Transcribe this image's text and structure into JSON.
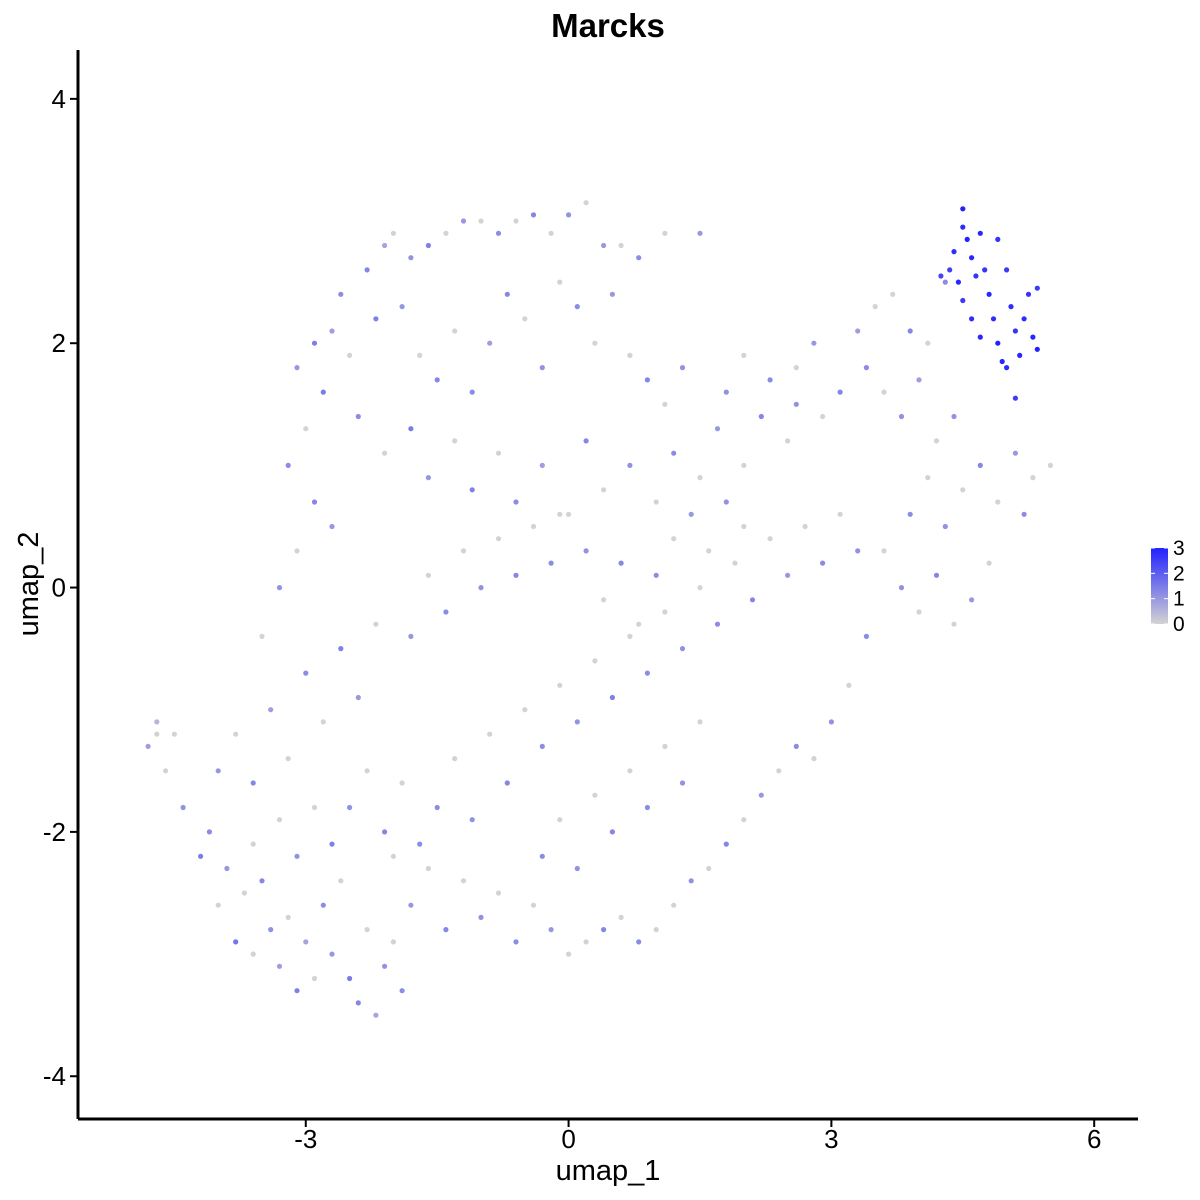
{
  "chart_data": {
    "type": "scatter",
    "title": "Marcks",
    "xlabel": "umap_1",
    "ylabel": "umap_2",
    "xlim": [
      -5.6,
      6.5
    ],
    "ylim": [
      -4.35,
      4.4
    ],
    "x_ticks": [
      -3,
      0,
      3,
      6
    ],
    "x_tick_labels": [
      "-3",
      "0",
      "3",
      "6"
    ],
    "y_ticks": [
      -4,
      -2,
      0,
      2,
      4
    ],
    "y_tick_labels": [
      "-4",
      "-2",
      "0",
      "2",
      "4"
    ],
    "grid": false,
    "legend": {
      "position": "right",
      "type": "continuous colorbar",
      "range": [
        0,
        3
      ],
      "ticks": [
        0,
        1,
        2,
        3
      ],
      "tick_labels": [
        "0",
        "1",
        "2",
        "3"
      ],
      "low_color": "#d3d3d3",
      "high_color": "#2222ff"
    },
    "colors": {
      "low": "#d3d3d3",
      "high": "#2222ff"
    },
    "points": [
      [
        -4.8,
        -1.3,
        0.9
      ],
      [
        -4.7,
        -1.1,
        0.5
      ],
      [
        -4.7,
        -1.2,
        0.0
      ],
      [
        -4.6,
        -1.5,
        0.0
      ],
      [
        -4.5,
        -1.2,
        0.0
      ],
      [
        -4.4,
        -1.8,
        1.1
      ],
      [
        -4.2,
        -2.2,
        1.5
      ],
      [
        -4.1,
        -2.0,
        1.2
      ],
      [
        -4.0,
        -2.6,
        0.0
      ],
      [
        -3.9,
        -2.3,
        1.0
      ],
      [
        -3.8,
        -2.9,
        1.6
      ],
      [
        -3.7,
        -2.5,
        0.0
      ],
      [
        -3.6,
        -3.0,
        0.0
      ],
      [
        -3.5,
        -2.4,
        1.3
      ],
      [
        -3.4,
        -2.8,
        1.1
      ],
      [
        -3.3,
        -3.1,
        0.9
      ],
      [
        -3.2,
        -2.7,
        0.0
      ],
      [
        -3.1,
        -3.3,
        1.4
      ],
      [
        -3.0,
        -2.9,
        0.8
      ],
      [
        -2.9,
        -3.2,
        0.0
      ],
      [
        -2.8,
        -2.6,
        1.2
      ],
      [
        -2.7,
        -3.0,
        1.0
      ],
      [
        -2.6,
        -2.4,
        0.0
      ],
      [
        -2.5,
        -3.2,
        1.5
      ],
      [
        -2.4,
        -3.4,
        1.3
      ],
      [
        -2.3,
        -2.8,
        0.0
      ],
      [
        -2.2,
        -3.5,
        0.8
      ],
      [
        -2.1,
        -3.1,
        1.1
      ],
      [
        -2.0,
        -2.9,
        0.0
      ],
      [
        -1.9,
        -3.3,
        1.2
      ],
      [
        -4.0,
        -1.5,
        1.0
      ],
      [
        -3.8,
        -1.2,
        0.0
      ],
      [
        -3.6,
        -1.6,
        1.3
      ],
      [
        -3.4,
        -1.0,
        0.9
      ],
      [
        -3.2,
        -1.4,
        0.0
      ],
      [
        -3.0,
        -0.7,
        1.2
      ],
      [
        -2.8,
        -1.1,
        0.0
      ],
      [
        -2.6,
        -0.5,
        1.4
      ],
      [
        -2.4,
        -0.9,
        1.0
      ],
      [
        -2.2,
        -0.3,
        0.0
      ],
      [
        -3.5,
        -0.4,
        0.0
      ],
      [
        -3.3,
        0.0,
        1.1
      ],
      [
        -3.1,
        0.3,
        0.0
      ],
      [
        -2.9,
        0.7,
        1.3
      ],
      [
        -2.7,
        0.5,
        1.0
      ],
      [
        -3.2,
        1.0,
        1.2
      ],
      [
        -3.0,
        1.3,
        0.0
      ],
      [
        -2.8,
        1.6,
        1.5
      ],
      [
        -3.1,
        1.8,
        1.0
      ],
      [
        -2.9,
        2.0,
        1.4
      ],
      [
        -2.7,
        2.1,
        0.9
      ],
      [
        -2.5,
        1.9,
        0.0
      ],
      [
        -2.6,
        2.4,
        1.2
      ],
      [
        -2.3,
        2.6,
        1.3
      ],
      [
        -2.1,
        2.8,
        0.8
      ],
      [
        -2.0,
        2.9,
        0.0
      ],
      [
        -1.8,
        2.7,
        1.1
      ],
      [
        -1.6,
        2.8,
        1.4
      ],
      [
        -1.4,
        2.9,
        0.0
      ],
      [
        -1.2,
        3.0,
        1.0
      ],
      [
        -1.0,
        3.0,
        0.0
      ],
      [
        -0.8,
        2.9,
        1.2
      ],
      [
        -0.6,
        3.0,
        0.0
      ],
      [
        -0.4,
        3.05,
        1.3
      ],
      [
        -0.2,
        2.9,
        0.0
      ],
      [
        0.0,
        3.05,
        1.1
      ],
      [
        0.2,
        3.15,
        0.0
      ],
      [
        0.4,
        2.8,
        1.0
      ],
      [
        0.6,
        2.8,
        0.0
      ],
      [
        0.8,
        2.7,
        1.2
      ],
      [
        1.1,
        2.9,
        0.0
      ],
      [
        1.5,
        2.9,
        1.0
      ],
      [
        -2.2,
        2.2,
        1.4
      ],
      [
        -1.9,
        2.3,
        1.0
      ],
      [
        -1.7,
        1.9,
        0.0
      ],
      [
        -1.5,
        1.7,
        1.3
      ],
      [
        -1.3,
        2.1,
        0.0
      ],
      [
        -1.1,
        1.6,
        1.2
      ],
      [
        -0.9,
        2.0,
        0.9
      ],
      [
        -0.7,
        2.4,
        1.3
      ],
      [
        -0.5,
        2.2,
        0.0
      ],
      [
        -0.3,
        1.8,
        1.1
      ],
      [
        -0.1,
        2.5,
        0.0
      ],
      [
        0.1,
        2.3,
        1.2
      ],
      [
        0.3,
        2.0,
        0.0
      ],
      [
        0.5,
        2.4,
        1.0
      ],
      [
        0.7,
        1.9,
        0.0
      ],
      [
        0.9,
        1.7,
        1.3
      ],
      [
        1.1,
        1.5,
        0.0
      ],
      [
        1.3,
        1.8,
        1.1
      ],
      [
        -2.4,
        1.4,
        1.2
      ],
      [
        -2.1,
        1.1,
        0.0
      ],
      [
        -1.8,
        1.3,
        1.5
      ],
      [
        -1.6,
        0.9,
        1.0
      ],
      [
        -1.3,
        1.2,
        0.0
      ],
      [
        -1.1,
        0.8,
        1.4
      ],
      [
        -0.8,
        1.1,
        0.0
      ],
      [
        -0.6,
        0.7,
        1.2
      ],
      [
        -0.3,
        1.0,
        0.9
      ],
      [
        -0.1,
        0.6,
        0.0
      ],
      [
        0.2,
        1.2,
        1.3
      ],
      [
        0.4,
        0.8,
        0.0
      ],
      [
        0.7,
        1.0,
        1.1
      ],
      [
        1.0,
        0.7,
        0.0
      ],
      [
        1.2,
        1.1,
        1.2
      ],
      [
        1.5,
        0.9,
        0.0
      ],
      [
        1.7,
        1.3,
        1.0
      ],
      [
        2.0,
        1.0,
        0.0
      ],
      [
        2.2,
        1.4,
        1.3
      ],
      [
        2.5,
        1.2,
        0.0
      ],
      [
        1.8,
        1.6,
        1.1
      ],
      [
        2.0,
        1.9,
        0.0
      ],
      [
        2.3,
        1.7,
        1.2
      ],
      [
        2.6,
        1.8,
        0.0
      ],
      [
        2.8,
        2.0,
        1.0
      ],
      [
        2.6,
        1.5,
        1.1
      ],
      [
        2.9,
        1.4,
        0.0
      ],
      [
        3.1,
        1.6,
        1.3
      ],
      [
        3.3,
        2.1,
        0.9
      ],
      [
        3.5,
        2.3,
        0.0
      ],
      [
        3.4,
        1.8,
        1.2
      ],
      [
        3.6,
        1.6,
        0.0
      ],
      [
        3.8,
        1.4,
        1.1
      ],
      [
        3.7,
        2.4,
        0.0
      ],
      [
        3.9,
        2.1,
        1.3
      ],
      [
        4.1,
        2.0,
        0.0
      ],
      [
        4.3,
        2.5,
        1.2
      ],
      [
        4.0,
        1.7,
        0.9
      ],
      [
        4.2,
        1.2,
        0.0
      ],
      [
        4.4,
        1.4,
        1.1
      ],
      [
        4.5,
        3.1,
        3.0
      ],
      [
        4.5,
        2.95,
        2.8
      ],
      [
        4.55,
        2.85,
        3.0
      ],
      [
        4.6,
        2.7,
        2.9
      ],
      [
        4.65,
        2.55,
        2.7
      ],
      [
        4.4,
        2.75,
        2.8
      ],
      [
        4.45,
        2.5,
        2.9
      ],
      [
        4.5,
        2.35,
        2.6
      ],
      [
        4.6,
        2.2,
        2.8
      ],
      [
        4.7,
        2.05,
        2.9
      ],
      [
        4.75,
        2.6,
        2.7
      ],
      [
        4.8,
        2.4,
        2.9
      ],
      [
        4.85,
        2.2,
        2.8
      ],
      [
        4.9,
        2.0,
        3.0
      ],
      [
        4.95,
        1.85,
        2.9
      ],
      [
        5.0,
        2.6,
        2.6
      ],
      [
        5.05,
        2.3,
        2.8
      ],
      [
        5.1,
        2.1,
        2.7
      ],
      [
        5.15,
        1.9,
        2.9
      ],
      [
        5.2,
        2.2,
        2.8
      ],
      [
        5.25,
        2.4,
        2.7
      ],
      [
        5.3,
        2.05,
        2.9
      ],
      [
        5.35,
        2.45,
        2.6
      ],
      [
        5.35,
        1.95,
        3.0
      ],
      [
        5.0,
        1.8,
        2.8
      ],
      [
        4.35,
        2.6,
        2.5
      ],
      [
        4.7,
        2.9,
        2.9
      ],
      [
        4.9,
        2.85,
        2.7
      ],
      [
        5.1,
        1.55,
        2.6
      ],
      [
        4.25,
        2.55,
        2.4
      ],
      [
        3.9,
        0.6,
        1.2
      ],
      [
        4.1,
        0.9,
        0.0
      ],
      [
        4.3,
        0.5,
        1.1
      ],
      [
        4.5,
        0.8,
        0.0
      ],
      [
        4.7,
        1.0,
        1.3
      ],
      [
        4.9,
        0.7,
        0.0
      ],
      [
        5.1,
        1.1,
        1.0
      ],
      [
        5.3,
        0.9,
        0.0
      ],
      [
        5.5,
        1.0,
        0.0
      ],
      [
        5.2,
        0.6,
        1.2
      ],
      [
        3.6,
        0.3,
        0.0
      ],
      [
        3.8,
        0.0,
        1.1
      ],
      [
        4.0,
        -0.2,
        0.0
      ],
      [
        4.2,
        0.1,
        1.3
      ],
      [
        4.4,
        -0.3,
        0.0
      ],
      [
        4.6,
        -0.1,
        1.0
      ],
      [
        4.8,
        0.2,
        0.0
      ],
      [
        3.4,
        -0.4,
        1.2
      ],
      [
        3.2,
        -0.8,
        0.0
      ],
      [
        3.0,
        -1.1,
        1.1
      ],
      [
        2.8,
        -1.4,
        0.0
      ],
      [
        2.6,
        -1.3,
        1.2
      ],
      [
        2.4,
        -1.5,
        0.0
      ],
      [
        2.2,
        -1.7,
        1.0
      ],
      [
        2.0,
        -1.9,
        0.0
      ],
      [
        1.8,
        -2.1,
        1.3
      ],
      [
        1.6,
        -2.3,
        0.0
      ],
      [
        1.4,
        -2.4,
        1.1
      ],
      [
        1.2,
        -2.6,
        0.0
      ],
      [
        1.0,
        -2.8,
        0.0
      ],
      [
        0.8,
        -2.9,
        1.2
      ],
      [
        0.6,
        -2.7,
        0.0
      ],
      [
        0.4,
        -2.8,
        1.3
      ],
      [
        0.2,
        -2.9,
        0.0
      ],
      [
        0.0,
        -3.0,
        0.0
      ],
      [
        -0.2,
        -2.8,
        1.0
      ],
      [
        -0.4,
        -2.6,
        0.0
      ],
      [
        -0.6,
        -2.9,
        1.2
      ],
      [
        -0.8,
        -2.5,
        0.0
      ],
      [
        -1.0,
        -2.7,
        1.1
      ],
      [
        -1.2,
        -2.4,
        0.0
      ],
      [
        -1.4,
        -2.8,
        1.3
      ],
      [
        -1.6,
        -2.3,
        0.0
      ],
      [
        -1.8,
        -2.6,
        1.0
      ],
      [
        -2.0,
        -2.2,
        0.0
      ],
      [
        -1.5,
        -1.8,
        1.2
      ],
      [
        -1.3,
        -1.4,
        0.0
      ],
      [
        -1.1,
        -1.9,
        1.1
      ],
      [
        -0.9,
        -1.2,
        0.0
      ],
      [
        -0.7,
        -1.6,
        1.3
      ],
      [
        -0.5,
        -1.0,
        0.0
      ],
      [
        -0.3,
        -1.3,
        1.2
      ],
      [
        -0.1,
        -0.8,
        0.0
      ],
      [
        0.1,
        -1.1,
        1.1
      ],
      [
        0.3,
        -0.6,
        0.0
      ],
      [
        0.5,
        -0.9,
        1.4
      ],
      [
        0.7,
        -0.4,
        0.0
      ],
      [
        0.9,
        -0.7,
        1.2
      ],
      [
        1.1,
        -0.2,
        0.0
      ],
      [
        1.3,
        -0.5,
        1.1
      ],
      [
        1.5,
        0.0,
        0.0
      ],
      [
        1.7,
        -0.3,
        1.2
      ],
      [
        1.9,
        0.2,
        0.0
      ],
      [
        2.1,
        -0.1,
        1.3
      ],
      [
        2.3,
        0.4,
        0.0
      ],
      [
        2.5,
        0.1,
        1.0
      ],
      [
        2.7,
        0.5,
        0.0
      ],
      [
        2.9,
        0.2,
        1.2
      ],
      [
        3.1,
        0.6,
        0.0
      ],
      [
        3.3,
        0.3,
        1.1
      ],
      [
        -1.8,
        -0.4,
        1.0
      ],
      [
        -1.6,
        0.1,
        0.0
      ],
      [
        -1.4,
        -0.2,
        1.2
      ],
      [
        -1.2,
        0.3,
        0.0
      ],
      [
        -1.0,
        0.0,
        1.1
      ],
      [
        -0.8,
        0.4,
        0.0
      ],
      [
        -0.6,
        0.1,
        1.3
      ],
      [
        -0.4,
        0.5,
        0.0
      ],
      [
        -0.2,
        0.2,
        1.2
      ],
      [
        0.0,
        0.6,
        0.0
      ],
      [
        0.2,
        0.3,
        1.1
      ],
      [
        0.4,
        -0.1,
        0.0
      ],
      [
        0.6,
        0.2,
        1.3
      ],
      [
        0.8,
        -0.3,
        0.0
      ],
      [
        1.0,
        0.1,
        1.2
      ],
      [
        1.2,
        0.4,
        0.0
      ],
      [
        1.4,
        0.6,
        1.0
      ],
      [
        1.6,
        0.3,
        0.0
      ],
      [
        1.8,
        0.7,
        1.1
      ],
      [
        2.0,
        0.5,
        0.0
      ],
      [
        -2.5,
        -1.8,
        1.1
      ],
      [
        -2.3,
        -1.5,
        0.0
      ],
      [
        -2.1,
        -2.0,
        1.3
      ],
      [
        -1.9,
        -1.6,
        0.0
      ],
      [
        -1.7,
        -2.1,
        1.2
      ],
      [
        -3.3,
        -1.9,
        0.0
      ],
      [
        -3.1,
        -2.2,
        1.1
      ],
      [
        -2.9,
        -1.8,
        0.0
      ],
      [
        -2.7,
        -2.1,
        1.4
      ],
      [
        -3.6,
        -2.1,
        0.0
      ],
      [
        -0.3,
        -2.2,
        1.2
      ],
      [
        -0.1,
        -1.9,
        0.0
      ],
      [
        0.1,
        -2.3,
        1.1
      ],
      [
        0.3,
        -1.7,
        0.0
      ],
      [
        0.5,
        -2.0,
        1.3
      ],
      [
        0.7,
        -1.5,
        0.0
      ],
      [
        0.9,
        -1.8,
        1.2
      ],
      [
        1.1,
        -1.3,
        0.0
      ],
      [
        1.3,
        -1.6,
        1.1
      ],
      [
        1.5,
        -1.1,
        0.0
      ]
    ]
  }
}
